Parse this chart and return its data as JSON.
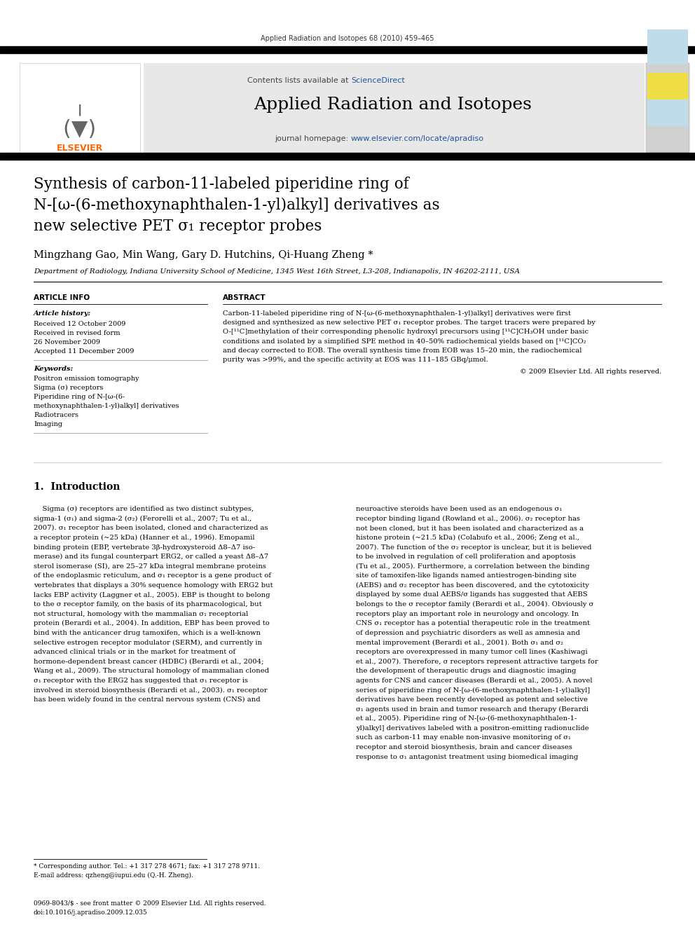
{
  "page_width": 9.92,
  "page_height": 13.23,
  "bg_color": "#ffffff",
  "journal_ref": "Applied Radiation and Isotopes 68 (2010) 459–465",
  "header_bg": "#e8e8e8",
  "header_text1": "Contents lists available at ",
  "header_sciencedirect": "ScienceDirect",
  "header_sciencedirect_color": "#1a56a0",
  "journal_title": "Applied Radiation and Isotopes",
  "homepage_text": "journal homepage: ",
  "homepage_url": "www.elsevier.com/locate/apradiso",
  "homepage_url_color": "#1a56a0",
  "article_title_line1": "Synthesis of carbon-11-labeled piperidine ring of",
  "article_title_line2": "N-[ω-(6-methoxynaphthalen-1-yl)alkyl] derivatives as",
  "article_title_line3": "new selective PET σ₁ receptor probes",
  "authors": "Mingzhang Gao, Min Wang, Gary D. Hutchins, Qi-Huang Zheng *",
  "affiliation": "Department of Radiology, Indiana University School of Medicine, 1345 West 16th Street, L3-208, Indianapolis, IN 46202-2111, USA",
  "article_info_header": "ARTICLE INFO",
  "abstract_header": "ABSTRACT",
  "article_history_label": "Article history:",
  "received1": "Received 12 October 2009",
  "received2": "Received in revised form",
  "received2b": "26 November 2009",
  "accepted": "Accepted 11 December 2009",
  "keywords_label": "Keywords:",
  "keyword1": "Positron emission tomography",
  "keyword2": "Sigma (σ) receptors",
  "keyword3": "Piperidine ring of N-[ω-(6-",
  "keyword4": "methoxynaphthalen-1-yl)alkyl] derivatives",
  "keyword5": "Radiotracers",
  "keyword6": "Imaging",
  "abstract_lines": [
    "Carbon-11-labeled piperidine ring of N-[ω-(6-methoxynaphthalen-1-yl)alkyl] derivatives were first",
    "designed and synthesized as new selective PET σ₁ receptor probes. The target tracers were prepared by",
    "O-[¹¹C]methylation of their corresponding phenolic hydroxyl precursors using [¹¹C]CH₃OH under basic",
    "conditions and isolated by a simplified SPE method in 40–50% radiochemical yields based on [¹¹C]CO₂",
    "and decay corrected to EOB. The overall synthesis time from EOB was 15–20 min, the radiochemical",
    "purity was >99%, and the specific activity at EOS was 111–185 GBq/μmol."
  ],
  "copyright": "© 2009 Elsevier Ltd. All rights reserved.",
  "intro_header": "1.  Introduction",
  "intro_col1_lines": [
    "    Sigma (σ) receptors are identified as two distinct subtypes,",
    "sigma-1 (σ₁) and sigma-2 (σ₂) (Ferorelli et al., 2007; Tu et al.,",
    "2007). σ₁ receptor has been isolated, cloned and characterized as",
    "a receptor protein (~25 kDa) (Hanner et al., 1996). Emopamil",
    "binding protein (EBP, vertebrate 3β-hydroxysteroid Δ8–Δ7 iso-",
    "merase) and its fungal counterpart ERG2, or called a yeast Δ8–Δ7",
    "sterol isomerase (SI), are 25–27 kDa integral membrane proteins",
    "of the endoplasmic reticulum, and σ₁ receptor is a gene product of",
    "vertebrates that displays a 30% sequence homology with ERG2 but",
    "lacks EBP activity (Laggner et al., 2005). EBP is thought to belong",
    "to the σ receptor family, on the basis of its pharmacological, but",
    "not structural, homology with the mammalian σ₁ receptorial",
    "protein (Berardi et al., 2004). In addition, EBP has been proved to",
    "bind with the anticancer drug tamoxifen, which is a well-known",
    "selective estrogen receptor modulator (SERM), and currently in",
    "advanced clinical trials or in the market for treatment of",
    "hormone-dependent breast cancer (HDBC) (Berardi et al., 2004;",
    "Wang et al., 2009). The structural homology of mammalian cloned",
    "σ₁ receptor with the ERG2 has suggested that σ₁ receptor is",
    "involved in steroid biosynthesis (Berardi et al., 2003). σ₁ receptor",
    "has been widely found in the central nervous system (CNS) and"
  ],
  "intro_col2_lines": [
    "neuroactive steroids have been used as an endogenous σ₁",
    "receptor binding ligand (Rowland et al., 2006). σ₂ receptor has",
    "not been cloned, but it has been isolated and characterized as a",
    "histone protein (~21.5 kDa) (Colabufo et al., 2006; Zeng et al.,",
    "2007). The function of the σ₂ receptor is unclear, but it is believed",
    "to be involved in regulation of cell proliferation and apoptosis",
    "(Tu et al., 2005). Furthermore, a correlation between the binding",
    "site of tamoxifen-like ligands named antiestrogen-binding site",
    "(AEBS) and σ₂ receptor has been discovered, and the cytotoxicity",
    "displayed by some dual AEBS/σ ligands has suggested that AEBS",
    "belongs to the σ receptor family (Berardi et al., 2004). Obviously σ",
    "receptors play an important role in neurology and oncology. In",
    "CNS σ₁ receptor has a potential therapeutic role in the treatment",
    "of depression and psychiatric disorders as well as amnesia and",
    "mental improvement (Berardi et al., 2001). Both σ₁ and σ₂",
    "receptors are overexpressed in many tumor cell lines (Kashiwagi",
    "et al., 2007). Therefore, σ receptors represent attractive targets for",
    "the development of therapeutic drugs and diagnostic imaging",
    "agents for CNS and cancer diseases (Berardi et al., 2005). A novel",
    "series of piperidine ring of N-[ω-(6-methoxynaphthalen-1-yl)alkyl]",
    "derivatives have been recently developed as potent and selective",
    "σ₁ agents used in brain and tumor research and therapy (Berardi",
    "et al., 2005). Piperidine ring of N-[ω-(6-methoxynaphthalen-1-",
    "yl)alkyl] derivatives labeled with a positron-emitting radionuclide",
    "such as carbon-11 may enable non-invasive monitoring of σ₁",
    "receptor and steroid biosynthesis, brain and cancer diseases",
    "response to σ₁ antagonist treatment using biomedical imaging"
  ],
  "footnote1": "* Corresponding author. Tel.: +1 317 278 4671; fax: +1 317 278 9711.",
  "footnote2": "E-mail address: qzheng@iupui.edu (Q.-H. Zheng).",
  "footer1": "0969-8043/$ - see front matter © 2009 Elsevier Ltd. All rights reserved.",
  "footer2": "doi:10.1016/j.apradiso.2009.12.035"
}
